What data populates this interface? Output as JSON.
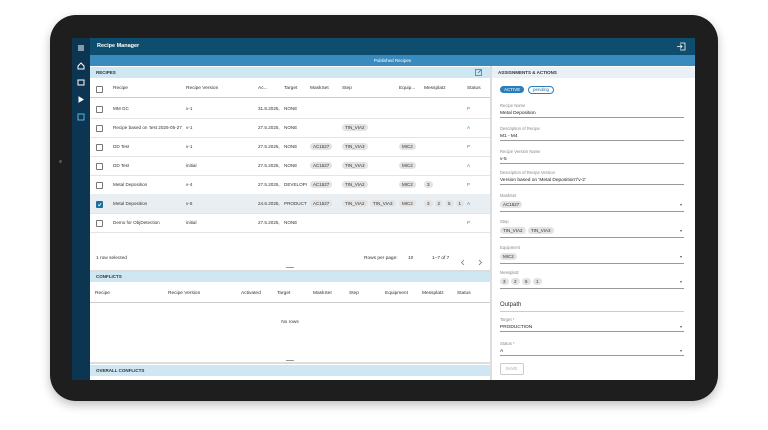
{
  "app_title": "Recipe Manager",
  "subbar": "Published Recipes",
  "recipes": {
    "title": "RECIPES",
    "columns": [
      "Recipe",
      "Recipe Version",
      "Ac...",
      "Target",
      "MaskSet",
      "Step",
      "Equip...",
      "Messplatz",
      "Status"
    ],
    "rows": [
      {
        "recipe": "MM GC",
        "version": "v-1",
        "activated": "31.8.2025,",
        "target": "NONE",
        "maskset": [],
        "step": [],
        "equipment": [],
        "messplatz": [],
        "status": "P",
        "selected": false
      },
      {
        "recipe": "Recipe based on 'test 2025-05-27 1",
        "version": "v-1",
        "activated": "27.5.2025,",
        "target": "NONE",
        "maskset": [],
        "step": [
          "TIN_VIA2"
        ],
        "equipment": [],
        "messplatz": [],
        "status": "A",
        "selected": false
      },
      {
        "recipe": "DD Test",
        "version": "v-1",
        "activated": "27.5.2025,",
        "target": "NONE",
        "maskset": [
          "AC1527"
        ],
        "step": [
          "TIN_VIA3"
        ],
        "equipment": [
          "MIC2"
        ],
        "messplatz": [],
        "status": "P",
        "selected": false
      },
      {
        "recipe": "DD Test",
        "version": "initial",
        "activated": "27.5.2025,",
        "target": "NONE",
        "maskset": [
          "AC1527"
        ],
        "step": [
          "TIN_VIA3"
        ],
        "equipment": [
          "MIC2"
        ],
        "messplatz": [],
        "status": "A",
        "selected": false
      },
      {
        "recipe": "Metal Deposition",
        "version": "v-4",
        "activated": "27.5.2025,",
        "target": "DEVELOPI",
        "maskset": [
          "AC1527"
        ],
        "step": [
          "TIN_VIA2"
        ],
        "equipment": [
          "MIC2"
        ],
        "messplatz": [
          "3"
        ],
        "status": "P",
        "selected": false
      },
      {
        "recipe": "Metal Deposition",
        "version": "v-5",
        "activated": "24.6.2025,",
        "target": "PRODUCT",
        "maskset": [
          "AC1527"
        ],
        "step": [
          "TIN_VIA2",
          "TIN_VIA3"
        ],
        "equipment": [
          "MIC2"
        ],
        "messplatz": [
          "3",
          "2",
          "5",
          "1"
        ],
        "status": "A",
        "selected": true
      },
      {
        "recipe": "Demo for ObjDetection",
        "version": "initial",
        "activated": "27.5.2025,",
        "target": "NONE",
        "maskset": [],
        "step": [],
        "equipment": [],
        "messplatz": [],
        "status": "P",
        "selected": false
      }
    ],
    "footer": {
      "selected": "1 row selected",
      "rows_per_page_label": "Rows per page:",
      "rows_per_page": "10",
      "range": "1–7 of 7"
    }
  },
  "conflicts": {
    "title": "CONFLICTS",
    "columns": [
      "Recipe",
      "Recipe Version",
      "Activated",
      "Target",
      "MaskSet",
      "Step",
      "Equipment",
      "Messplatz",
      "Status"
    ],
    "empty": "No rows"
  },
  "overall_conflicts": {
    "title": "OVERALL CONFLICTS"
  },
  "assignments": {
    "title": "ASSIGNMENTS & ACTIONS",
    "chips": [
      "ACTIVE",
      "pending"
    ],
    "fields": [
      {
        "label": "Recipe Name",
        "value": "Metal Deposition"
      },
      {
        "label": "Description of Recipe",
        "value": "M1 - M4"
      },
      {
        "label": "Recipe Version Name",
        "value": "v-5"
      },
      {
        "label": "Description of Recipe Version",
        "value": "Version based on 'Metal Deposition'/'v-2'"
      },
      {
        "label": "MaskSet",
        "chips": [
          "AC1527"
        ]
      },
      {
        "label": "Step",
        "chips": [
          "TIN_VIA2",
          "TIN_VIA3"
        ]
      },
      {
        "label": "Equipment",
        "chips": [
          "MIC2"
        ]
      },
      {
        "label": "Messplatz",
        "chips": [
          "3",
          "2",
          "5",
          "1"
        ]
      }
    ],
    "section": "Outpath",
    "outpath_fields": [
      {
        "label": "Target *",
        "value": "PRODUCTION"
      },
      {
        "label": "Status *",
        "value": "A"
      }
    ],
    "save": "SAVE"
  }
}
